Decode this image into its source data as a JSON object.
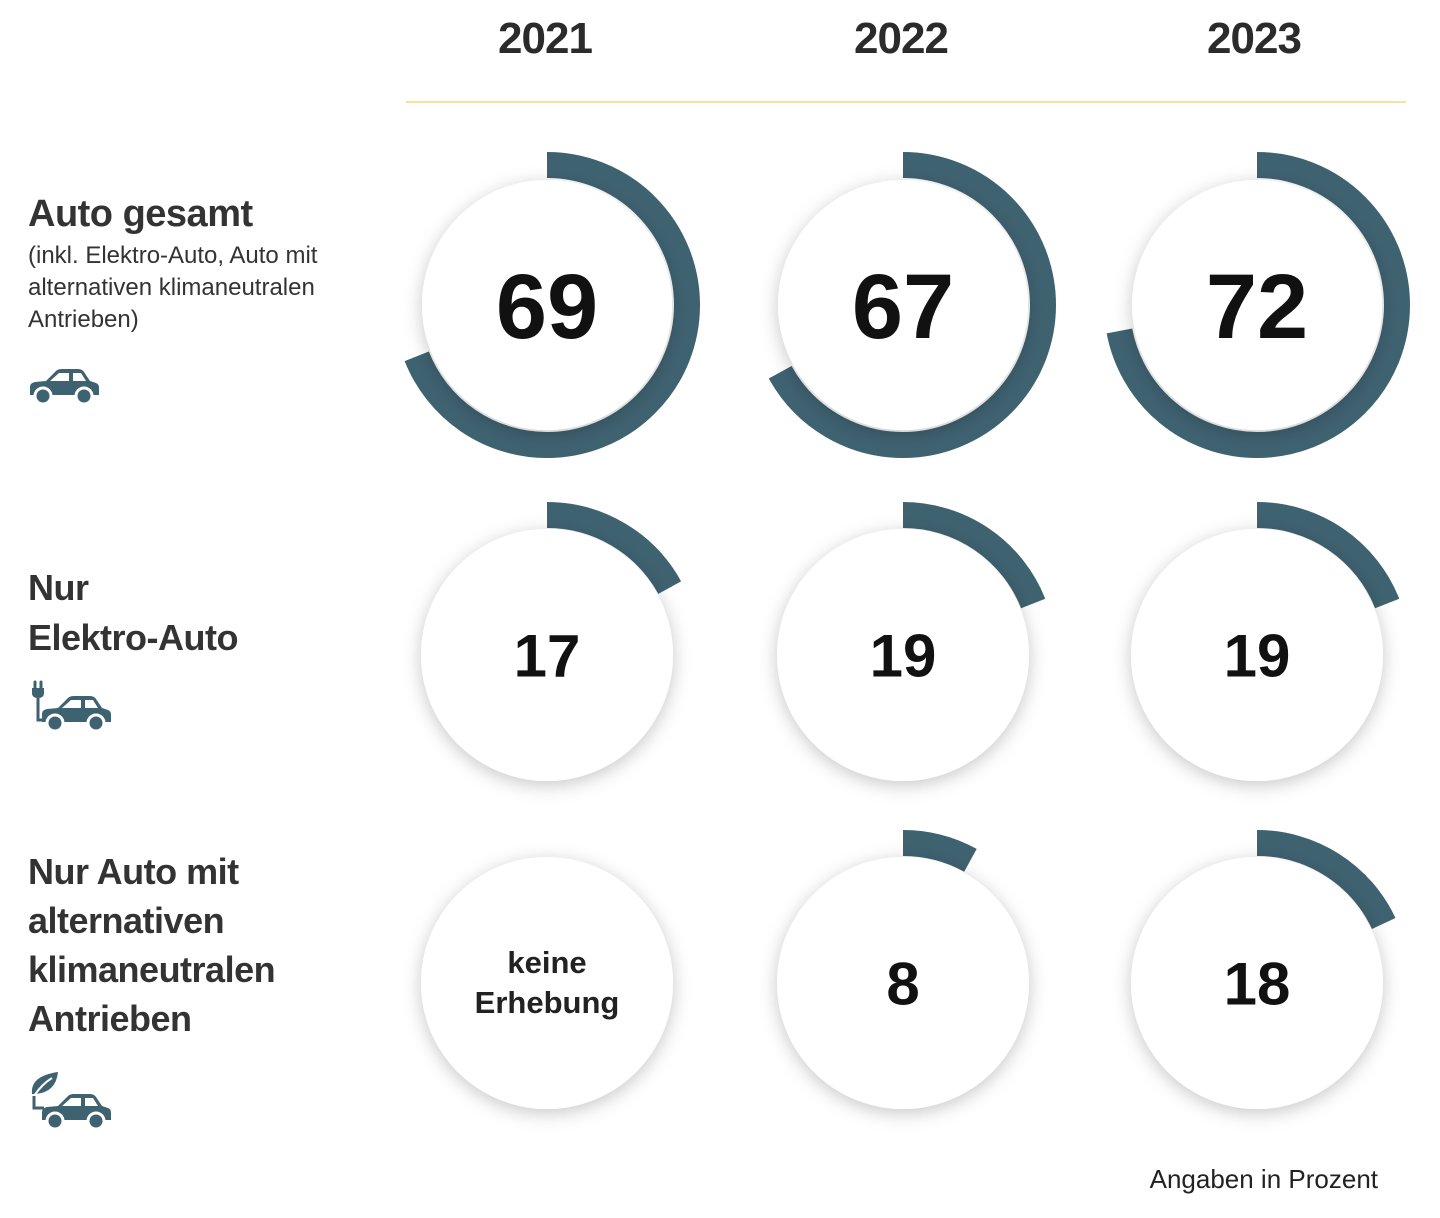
{
  "colors": {
    "arc": "#3f6271",
    "rule": "#f2e3a0",
    "text": "#1f1f1f",
    "icon": "#3f6271"
  },
  "chart_data": {
    "type": "radial-progress-grid",
    "unit": "Prozent",
    "years": [
      "2021",
      "2022",
      "2023"
    ],
    "rows": [
      {
        "title_lines": [
          "Auto gesamt"
        ],
        "subtitle_lines": [
          "(inkl. Elektro-Auto, Auto mit",
          "alternativen klimaneutralen",
          "Antrieben)"
        ],
        "icon": "car-icon",
        "values": [
          69,
          67,
          72
        ],
        "labels": [
          "69",
          "67",
          "72"
        ]
      },
      {
        "title_lines": [
          "Nur",
          "Elektro-Auto"
        ],
        "subtitle_lines": [],
        "icon": "electric-car-icon",
        "values": [
          17,
          19,
          19
        ],
        "labels": [
          "17",
          "19",
          "19"
        ]
      },
      {
        "title_lines": [
          "Nur Auto mit",
          "alternativen",
          "klimaneutralen",
          "Antrieben"
        ],
        "subtitle_lines": [],
        "icon": "eco-car-icon",
        "values": [
          null,
          8,
          18
        ],
        "labels": [
          "keine Erhebung",
          "8",
          "18"
        ],
        "no_data_lines": [
          "keine",
          "Erhebung"
        ]
      }
    ],
    "footnote": "Angaben in Prozent"
  }
}
